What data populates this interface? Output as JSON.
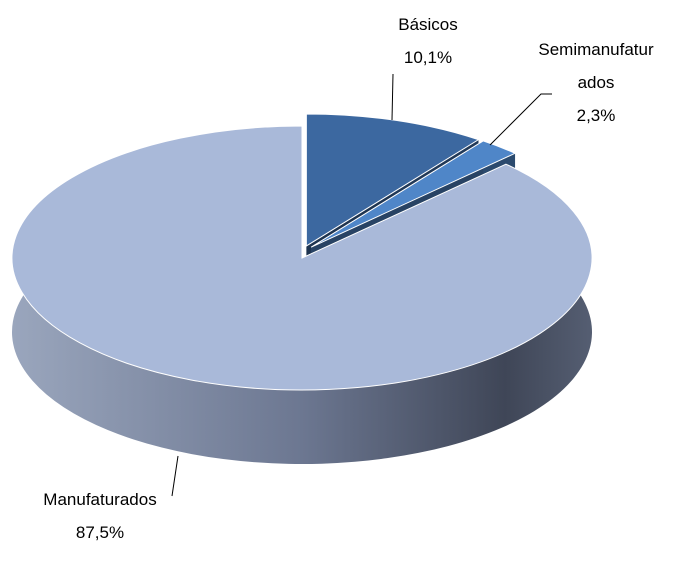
{
  "chart_data": {
    "type": "pie",
    "categories": [
      "Básicos",
      "Semimanufaturados",
      "Manufaturados"
    ],
    "values": [
      10.1,
      2.3,
      87.5
    ],
    "value_labels": [
      "10,1%",
      "2,3%",
      "87,5%"
    ],
    "colors": [
      "#3c68a0",
      "#4f86c8",
      "#a9b9d9"
    ]
  }
}
